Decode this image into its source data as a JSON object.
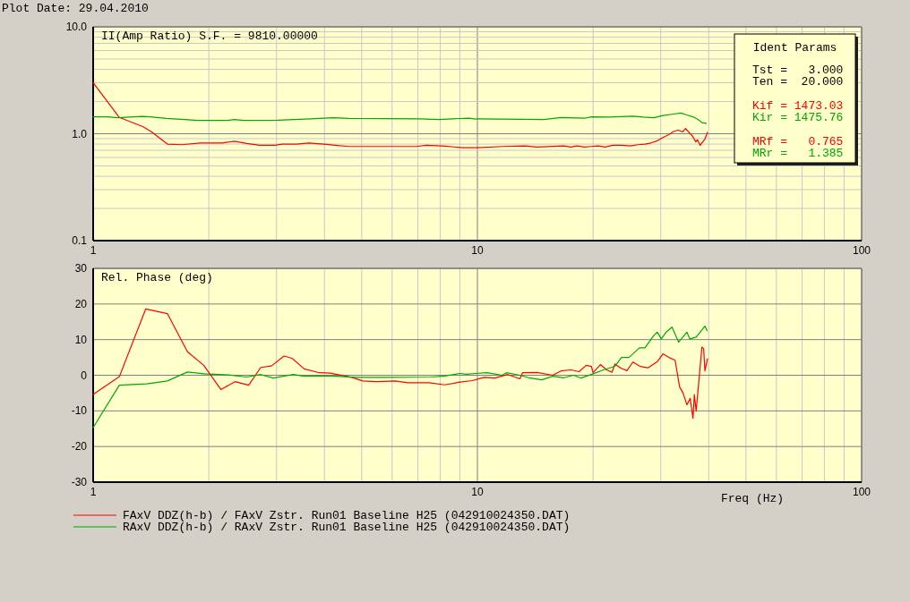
{
  "chart_data": [
    {
      "type": "line",
      "title": "II(Amp Ratio) S.F. = 9810.00000",
      "log": "xy",
      "grid": true,
      "xlim": [
        1,
        100
      ],
      "ylim": [
        0.1,
        10
      ],
      "xticks": [
        1,
        {
          "value": 2,
          "label": null
        },
        {
          "value": 3,
          "label": null
        },
        {
          "value": 4,
          "label": null
        },
        {
          "value": 5,
          "label": null
        },
        {
          "value": 6,
          "label": null
        },
        {
          "value": 7,
          "label": null
        },
        {
          "value": 8,
          "label": null
        },
        {
          "value": 9,
          "label": null
        },
        10,
        {
          "value": 20,
          "label": null
        },
        {
          "value": 30,
          "label": null
        },
        {
          "value": 40,
          "label": null
        },
        {
          "value": 50,
          "label": null
        },
        {
          "value": 60,
          "label": null
        },
        {
          "value": 70,
          "label": null
        },
        {
          "value": 80,
          "label": null
        },
        {
          "value": 90,
          "label": null
        },
        100
      ],
      "yticks": [
        0.1,
        {
          "value": 0.2,
          "label": null
        },
        {
          "value": 0.3,
          "label": null
        },
        {
          "value": 0.4,
          "label": null
        },
        {
          "value": 0.5,
          "label": null
        },
        {
          "value": 0.6,
          "label": null
        },
        {
          "value": 0.7,
          "label": null
        },
        {
          "value": 0.8,
          "label": null
        },
        {
          "value": 0.9,
          "label": null
        },
        {
          "value": 1,
          "label": "1.0"
        },
        {
          "value": 2,
          "label": null
        },
        {
          "value": 3,
          "label": null
        },
        {
          "value": 4,
          "label": null
        },
        {
          "value": 5,
          "label": null
        },
        {
          "value": 6,
          "label": null
        },
        {
          "value": 7,
          "label": null
        },
        {
          "value": 8,
          "label": null
        },
        {
          "value": 9,
          "label": null
        },
        {
          "value": 10,
          "label": "10.0"
        }
      ],
      "annotations": [
        "Plot Date: 29.04.2010"
      ],
      "series": [
        {
          "color": "#ff0000",
          "x": [
            1,
            1.17,
            1.35,
            1.42,
            1.56,
            1.7,
            1.9,
            2.17,
            2.33,
            2.51,
            2.71,
            2.97,
            3.11,
            3.38,
            3.64,
            3.99,
            4.26,
            4.63,
            6.96,
            7.36,
            8.07,
            9.18,
            10,
            11.6,
            13.3,
            14.3,
            16.8,
            17.5,
            18.2,
            19,
            19.8,
            20.6,
            21.5,
            22.5,
            23.7,
            25,
            26.2,
            27.3,
            28.3,
            29.4,
            30.4,
            31.5,
            32.4,
            33.3,
            34.2,
            34.8,
            35.7,
            36.3,
            37,
            37.4,
            38,
            38.5,
            39.1,
            39.7
          ],
          "values": [
            3.0,
            1.42,
            1.16,
            1.04,
            0.8,
            0.79,
            0.82,
            0.82,
            0.85,
            0.81,
            0.78,
            0.78,
            0.8,
            0.8,
            0.82,
            0.8,
            0.78,
            0.76,
            0.76,
            0.78,
            0.77,
            0.74,
            0.74,
            0.76,
            0.77,
            0.75,
            0.77,
            0.75,
            0.77,
            0.75,
            0.76,
            0.77,
            0.75,
            0.78,
            0.78,
            0.77,
            0.79,
            0.8,
            0.82,
            0.86,
            0.92,
            0.98,
            1.05,
            1.08,
            1.04,
            1.12,
            1.01,
            0.95,
            0.84,
            0.88,
            0.78,
            0.83,
            0.89,
            1.03
          ]
        },
        {
          "color": "#00a800",
          "x": [
            1,
            1.09,
            1.16,
            1.34,
            1.41,
            1.55,
            1.73,
            1.87,
            2.23,
            2.33,
            2.47,
            3.02,
            3.57,
            4.22,
            4.63,
            7.09,
            7.93,
            9.52,
            9.9,
            10,
            14.9,
            16.5,
            19.1,
            19.8,
            22,
            25.4,
            27,
            28.8,
            30.4,
            32.1,
            33.9,
            35,
            36.4,
            37.5,
            38.4,
            39.4
          ],
          "values": [
            1.44,
            1.44,
            1.41,
            1.45,
            1.44,
            1.39,
            1.36,
            1.33,
            1.33,
            1.36,
            1.33,
            1.34,
            1.37,
            1.41,
            1.39,
            1.38,
            1.36,
            1.4,
            1.37,
            1.38,
            1.36,
            1.42,
            1.4,
            1.44,
            1.43,
            1.46,
            1.43,
            1.41,
            1.48,
            1.52,
            1.56,
            1.5,
            1.44,
            1.36,
            1.27,
            1.25
          ]
        }
      ]
    },
    {
      "type": "other",
      "title": "Ident Params",
      "annotations": [
        "Tst =   3.000",
        "Ten =  20.000",
        "Kif = 1473.03",
        "Kir = 1475.76",
        "MRf =   0.765",
        "MRr =   1.385"
      ],
      "colors": [
        "#000000",
        "#000000",
        "#ff0000",
        "#00a800",
        "#ff0000",
        "#00a800"
      ]
    },
    {
      "type": "line",
      "title": "Rel. Phase (deg)",
      "xlabel": "Freq (Hz)",
      "log": "x",
      "grid": true,
      "legend": "bottom",
      "xlim": [
        1,
        100
      ],
      "ylim": [
        -30,
        30
      ],
      "xticks": [
        1,
        {
          "value": 2,
          "label": null
        },
        {
          "value": 3,
          "label": null
        },
        {
          "value": 4,
          "label": null
        },
        {
          "value": 5,
          "label": null
        },
        {
          "value": 6,
          "label": null
        },
        {
          "value": 7,
          "label": null
        },
        {
          "value": 8,
          "label": null
        },
        {
          "value": 9,
          "label": null
        },
        10,
        {
          "value": 20,
          "label": null
        },
        {
          "value": 30,
          "label": null
        },
        {
          "value": 40,
          "label": null
        },
        {
          "value": 50,
          "label": null
        },
        {
          "value": 60,
          "label": null
        },
        {
          "value": 70,
          "label": null
        },
        {
          "value": 80,
          "label": null
        },
        {
          "value": 90,
          "label": null
        },
        100
      ],
      "yticks": [
        -30,
        -20,
        -10,
        0,
        10,
        20,
        30
      ],
      "series": [
        {
          "name": "FAxV DDZ(h-b) / FAxV Zstr. Run01 Baseline H25 (042910024350.DAT)",
          "color": "#ff0000",
          "x": [
            1,
            1.17,
            1.37,
            1.56,
            1.76,
            1.94,
            2.15,
            2.34,
            2.54,
            2.73,
            2.91,
            3.14,
            3.3,
            3.54,
            3.88,
            4.14,
            4.71,
            5.03,
            5.47,
            6.11,
            6.58,
            7.49,
            8.22,
            9.02,
            9.7,
            10.4,
            11.1,
            12,
            12.9,
            13.1,
            14.3,
            15.7,
            16.5,
            17.5,
            18.4,
            19.2,
            19.8,
            20,
            20.9,
            21.7,
            22.4,
            22.8,
            23.6,
            24.5,
            25.4,
            26.5,
            27.8,
            29.4,
            30.4,
            31.5,
            32.7,
            33.6,
            34.3,
            35.1,
            35.8,
            36.4,
            36.7,
            37.1,
            37.7,
            38.4,
            38.8,
            39.1,
            39.7
          ],
          "values": [
            -5.4,
            -0.4,
            18.6,
            17.3,
            6.6,
            2.8,
            -4,
            -1.8,
            -2.8,
            2.2,
            2.6,
            5.4,
            4.7,
            1.8,
            0.7,
            0.6,
            -0.6,
            -1.6,
            -1.8,
            -1.6,
            -2.1,
            -2.1,
            -2.7,
            -1.9,
            -1.5,
            -0.6,
            -0.8,
            0.2,
            -1,
            0.7,
            0.8,
            0,
            1.2,
            1.5,
            1,
            2.8,
            2.5,
            0.7,
            3,
            1.5,
            0.8,
            3.2,
            2,
            1.3,
            3.7,
            2.5,
            2.1,
            3.8,
            6,
            5,
            4.2,
            -3.3,
            -5,
            -8.3,
            -6.5,
            -12.1,
            -5.4,
            -10,
            -1.7,
            7.9,
            7.5,
            1.2,
            4.6
          ]
        },
        {
          "name": "RAxV DDZ(h-b) / RAxV Zstr. Run01 Baseline H25 (042910024350.DAT)",
          "color": "#00a800",
          "x": [
            1,
            1.17,
            1.38,
            1.56,
            1.76,
            1.94,
            2.25,
            2.51,
            2.73,
            2.94,
            3.32,
            3.51,
            4.22,
            4.8,
            5.88,
            7.62,
            8.22,
            9.02,
            9.35,
            9.9,
            10.6,
            11.6,
            11.9,
            12.9,
            13.6,
            14.7,
            15.7,
            16.8,
            17.8,
            18.6,
            20,
            21.3,
            22.8,
            23.7,
            24.8,
            25.4,
            26.4,
            27.3,
            28.8,
            29.4,
            30.1,
            31,
            32.1,
            33.4,
            35.1,
            35.7,
            37.1,
            38.4,
            39.1,
            39.6
          ],
          "values": [
            -14.7,
            -2.8,
            -2.4,
            -1.6,
            0.9,
            0.4,
            0.1,
            -0.5,
            0.2,
            -0.8,
            0.2,
            -0.2,
            -0.2,
            -0.6,
            -0.6,
            -0.5,
            -0.2,
            0.5,
            0.3,
            0.5,
            0.7,
            0,
            0.7,
            0,
            -0.7,
            -1.3,
            -0.3,
            -0.7,
            0,
            -0.8,
            0.4,
            1.5,
            2.5,
            5,
            5,
            6,
            7.7,
            7.7,
            11.2,
            12.1,
            10.2,
            12.1,
            13.5,
            9.3,
            12.1,
            10.2,
            10.7,
            12.7,
            13.8,
            12.5
          ]
        }
      ]
    }
  ]
}
